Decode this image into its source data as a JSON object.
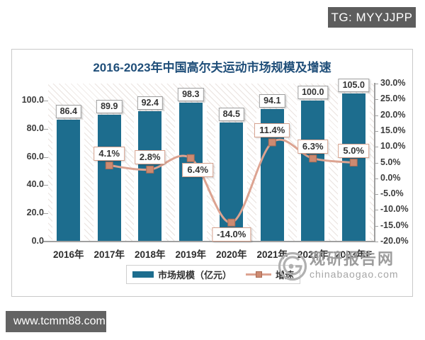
{
  "badges": {
    "telegram": "TG: MYYJJPP",
    "website": "www.tcmm88.com"
  },
  "watermark": {
    "name": "观研报告网",
    "domain": "chinabaogao.com"
  },
  "chart_data": {
    "type": "bar",
    "combo": "bar+line",
    "title": "2016-2023年中国高尔夫运动市场规模及增速",
    "categories": [
      "2016年",
      "2017年",
      "2018年",
      "2019年",
      "2020年",
      "2021年",
      "2022年",
      "2023年E"
    ],
    "series": [
      {
        "name": "市场规模（亿元）",
        "kind": "bar",
        "axis": "left",
        "color": "#1d6d8e",
        "values": [
          86.4,
          89.9,
          92.4,
          98.3,
          84.5,
          94.1,
          100.0,
          105.0
        ],
        "labels": [
          "86.4",
          "89.9",
          "92.4",
          "98.3",
          "84.5",
          "94.1",
          "100.0",
          "105.0"
        ]
      },
      {
        "name": "增速",
        "kind": "line",
        "axis": "right",
        "color": "#dca391",
        "marker_color": "#cd8a71",
        "marker_border": "#aa6b54",
        "points": [
          {
            "category": "2017年",
            "index": 1,
            "value": 4.1,
            "label": "4.1%",
            "placement": "above"
          },
          {
            "category": "2018年",
            "index": 2,
            "value": 2.8,
            "label": "2.8%",
            "placement": "above"
          },
          {
            "category": "2019年",
            "index": 3,
            "value": 6.4,
            "label": "6.4%",
            "placement": "below-right"
          },
          {
            "category": "2020年",
            "index": 4,
            "value": -14.0,
            "label": "-14.0%",
            "placement": "below"
          },
          {
            "category": "2021年",
            "index": 5,
            "value": 11.4,
            "label": "11.4%",
            "placement": "above"
          },
          {
            "category": "2022年",
            "index": 6,
            "value": 6.3,
            "label": "6.3%",
            "placement": "above"
          },
          {
            "category": "2023年E",
            "index": 7,
            "value": 5.0,
            "label": "5.0%",
            "placement": "above"
          }
        ]
      }
    ],
    "left_axis": {
      "min": 0,
      "render_max": 112,
      "ticks": [
        {
          "value": 100,
          "label": "100.0"
        },
        {
          "value": 80,
          "label": "80.0"
        },
        {
          "value": 60,
          "label": "60.0"
        },
        {
          "value": 40,
          "label": "40.0"
        },
        {
          "value": 20,
          "label": "20.0"
        },
        {
          "value": 0,
          "label": "0.0"
        }
      ]
    },
    "right_axis": {
      "min": -20,
      "max": 30,
      "ticks": [
        {
          "value": 30,
          "label": "30.0%"
        },
        {
          "value": 25,
          "label": "25.0%"
        },
        {
          "value": 20,
          "label": "20.0%"
        },
        {
          "value": 15,
          "label": "15.0%"
        },
        {
          "value": 10,
          "label": "10.0%"
        },
        {
          "value": 5,
          "label": "5.0%"
        },
        {
          "value": 0,
          "label": "0.0%"
        },
        {
          "value": -5,
          "label": "-5.0%"
        },
        {
          "value": -10,
          "label": "-10.0%"
        },
        {
          "value": -15,
          "label": "-15.0%"
        },
        {
          "value": -20,
          "label": "-20.0%"
        }
      ]
    },
    "legend": {
      "position": "bottom",
      "items": [
        "市场规模（亿元）",
        "增速"
      ]
    }
  }
}
